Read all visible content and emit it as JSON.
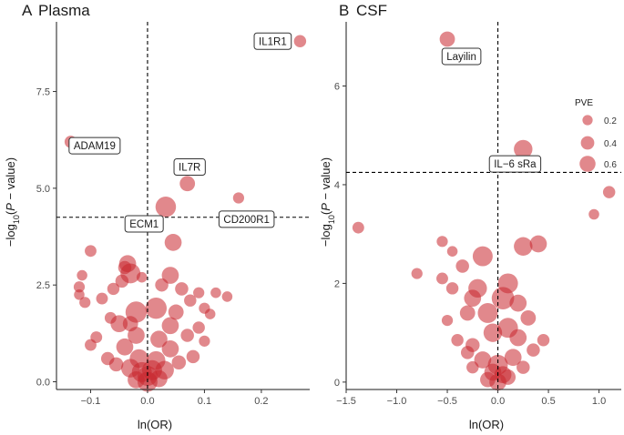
{
  "chart_data": [
    {
      "panel_letter": "A",
      "title": "Plasma",
      "type": "scatter",
      "xlabel": "ln(OR)",
      "ylabel_main": "−log",
      "ylabel_sub": "10",
      "ylabel_open": "(",
      "ylabel_italic": "P",
      "ylabel_close": " − value)",
      "xlim": [
        -0.16,
        0.285
      ],
      "ylim": [
        -0.2,
        9.3
      ],
      "xticks": [
        -0.1,
        0.0,
        0.1,
        0.2
      ],
      "xtick_labels": [
        "−0.1",
        "0.0",
        "0.1",
        "0.2"
      ],
      "yticks": [
        0,
        2.5,
        5,
        7.5
      ],
      "ytick_labels": [
        "0.0",
        "2.5",
        "5.0",
        "7.5"
      ],
      "vline_x": 0,
      "hline_y": 4.25,
      "highlighted": [
        {
          "label": "IL1R1",
          "x": 0.268,
          "y": 8.8,
          "pve": 0.08,
          "label_pos": [
            0.22,
            8.8
          ]
        },
        {
          "label": "ADAM19",
          "x": -0.135,
          "y": 6.2,
          "pve": 0.08,
          "label_pos": [
            -0.093,
            6.1
          ]
        },
        {
          "label": "IL7R",
          "x": 0.07,
          "y": 5.12,
          "pve": 0.15,
          "label_pos": [
            0.074,
            5.55
          ]
        },
        {
          "label": "CD200R1",
          "x": 0.16,
          "y": 4.75,
          "pve": 0.06,
          "label_pos": [
            0.174,
            4.2
          ]
        },
        {
          "label": "ECM1",
          "x": 0.032,
          "y": 4.52,
          "pve": 0.32,
          "label_pos": [
            -0.006,
            4.08
          ]
        }
      ],
      "points": [
        {
          "x": 0.045,
          "y": 3.6,
          "pve": 0.2
        },
        {
          "x": 0.04,
          "y": 2.75,
          "pve": 0.2
        },
        {
          "x": -0.035,
          "y": 3.05,
          "pve": 0.2
        },
        {
          "x": -0.03,
          "y": 2.8,
          "pve": 0.3
        },
        {
          "x": -0.04,
          "y": 2.95,
          "pve": 0.1
        },
        {
          "x": -0.045,
          "y": 2.6,
          "pve": 0.1
        },
        {
          "x": -0.1,
          "y": 3.38,
          "pve": 0.07
        },
        {
          "x": -0.12,
          "y": 2.45,
          "pve": 0.06
        },
        {
          "x": -0.115,
          "y": 2.75,
          "pve": 0.05
        },
        {
          "x": -0.12,
          "y": 2.25,
          "pve": 0.05
        },
        {
          "x": -0.11,
          "y": 2.05,
          "pve": 0.06
        },
        {
          "x": 0.025,
          "y": 2.5,
          "pve": 0.1
        },
        {
          "x": -0.01,
          "y": 2.7,
          "pve": 0.05
        },
        {
          "x": 0.015,
          "y": 1.9,
          "pve": 0.35
        },
        {
          "x": -0.02,
          "y": 1.8,
          "pve": 0.35
        },
        {
          "x": 0.06,
          "y": 2.4,
          "pve": 0.1
        },
        {
          "x": 0.075,
          "y": 2.1,
          "pve": 0.08
        },
        {
          "x": 0.09,
          "y": 2.3,
          "pve": 0.06
        },
        {
          "x": 0.1,
          "y": 1.9,
          "pve": 0.06
        },
        {
          "x": 0.12,
          "y": 2.3,
          "pve": 0.05
        },
        {
          "x": 0.14,
          "y": 2.2,
          "pve": 0.05
        },
        {
          "x": 0.11,
          "y": 1.75,
          "pve": 0.05
        },
        {
          "x": -0.08,
          "y": 2.15,
          "pve": 0.07
        },
        {
          "x": -0.065,
          "y": 1.65,
          "pve": 0.07
        },
        {
          "x": -0.06,
          "y": 2.4,
          "pve": 0.08
        },
        {
          "x": -0.05,
          "y": 1.5,
          "pve": 0.2
        },
        {
          "x": -0.03,
          "y": 1.5,
          "pve": 0.15
        },
        {
          "x": 0.04,
          "y": 1.45,
          "pve": 0.2
        },
        {
          "x": 0.05,
          "y": 1.8,
          "pve": 0.15
        },
        {
          "x": 0.07,
          "y": 1.2,
          "pve": 0.1
        },
        {
          "x": 0.09,
          "y": 1.4,
          "pve": 0.08
        },
        {
          "x": -0.09,
          "y": 1.15,
          "pve": 0.07
        },
        {
          "x": -0.1,
          "y": 0.95,
          "pve": 0.07
        },
        {
          "x": 0.1,
          "y": 1.05,
          "pve": 0.06
        },
        {
          "x": -0.07,
          "y": 0.6,
          "pve": 0.1
        },
        {
          "x": 0.08,
          "y": 0.65,
          "pve": 0.1
        },
        {
          "x": -0.02,
          "y": 1.2,
          "pve": 0.2
        },
        {
          "x": 0.02,
          "y": 1.1,
          "pve": 0.2
        },
        {
          "x": -0.04,
          "y": 0.9,
          "pve": 0.2
        },
        {
          "x": 0.04,
          "y": 0.85,
          "pve": 0.2
        },
        {
          "x": -0.015,
          "y": 0.6,
          "pve": 0.25
        },
        {
          "x": 0.015,
          "y": 0.55,
          "pve": 0.25
        },
        {
          "x": -0.03,
          "y": 0.35,
          "pve": 0.25
        },
        {
          "x": 0.03,
          "y": 0.3,
          "pve": 0.25
        },
        {
          "x": 0.0,
          "y": 0.15,
          "pve": 0.3
        },
        {
          "x": -0.01,
          "y": 0.25,
          "pve": 0.3
        },
        {
          "x": 0.008,
          "y": 0.3,
          "pve": 0.3
        },
        {
          "x": -0.055,
          "y": 0.45,
          "pve": 0.12
        },
        {
          "x": 0.055,
          "y": 0.5,
          "pve": 0.12
        },
        {
          "x": -0.02,
          "y": 0.05,
          "pve": 0.2
        },
        {
          "x": 0.02,
          "y": 0.08,
          "pve": 0.2
        },
        {
          "x": 0.0,
          "y": 0.0,
          "pve": 0.3
        }
      ]
    },
    {
      "panel_letter": "B",
      "title": "CSF",
      "type": "scatter",
      "xlabel": "ln(OR)",
      "ylabel_main": "−log",
      "ylabel_sub": "10",
      "ylabel_open": "(",
      "ylabel_italic": "P",
      "ylabel_close": " − value)",
      "xlim": [
        -1.5,
        1.22
      ],
      "ylim": [
        -0.15,
        7.3
      ],
      "xticks": [
        -1.5,
        -1.0,
        -0.5,
        0.0,
        0.5,
        1.0
      ],
      "xtick_labels": [
        "−1.5",
        "−1.0",
        "−0.5",
        "0.0",
        "0.5",
        "1.0"
      ],
      "yticks": [
        0,
        2,
        4,
        6
      ],
      "ytick_labels": [
        "0",
        "2",
        "4",
        "6"
      ],
      "vline_x": 0,
      "hline_y": 4.25,
      "highlighted": [
        {
          "label": "Layilin",
          "x": -0.5,
          "y": 6.95,
          "pve": 0.15,
          "label_pos": [
            -0.36,
            6.6
          ]
        },
        {
          "label": "IL−6 sRa",
          "x": 0.25,
          "y": 4.72,
          "pve": 0.25,
          "label_pos": [
            0.17,
            4.42
          ]
        }
      ],
      "points": [
        {
          "x": 1.1,
          "y": 3.85,
          "pve": 0.08
        },
        {
          "x": 0.95,
          "y": 3.4,
          "pve": 0.05
        },
        {
          "x": -1.38,
          "y": 3.13,
          "pve": 0.07
        },
        {
          "x": -0.55,
          "y": 2.85,
          "pve": 0.06
        },
        {
          "x": -0.45,
          "y": 2.65,
          "pve": 0.05
        },
        {
          "x": -0.15,
          "y": 2.55,
          "pve": 0.3
        },
        {
          "x": 0.25,
          "y": 2.75,
          "pve": 0.25
        },
        {
          "x": 0.4,
          "y": 2.8,
          "pve": 0.2
        },
        {
          "x": -0.8,
          "y": 2.2,
          "pve": 0.06
        },
        {
          "x": -0.55,
          "y": 2.1,
          "pve": 0.07
        },
        {
          "x": -0.45,
          "y": 1.9,
          "pve": 0.08
        },
        {
          "x": -0.35,
          "y": 2.35,
          "pve": 0.1
        },
        {
          "x": -0.2,
          "y": 1.9,
          "pve": 0.25
        },
        {
          "x": -0.25,
          "y": 1.7,
          "pve": 0.2
        },
        {
          "x": 0.1,
          "y": 2.0,
          "pve": 0.3
        },
        {
          "x": 0.05,
          "y": 1.7,
          "pve": 0.4
        },
        {
          "x": 0.2,
          "y": 1.6,
          "pve": 0.2
        },
        {
          "x": -0.1,
          "y": 1.4,
          "pve": 0.3
        },
        {
          "x": -0.3,
          "y": 1.4,
          "pve": 0.15
        },
        {
          "x": 0.3,
          "y": 1.3,
          "pve": 0.15
        },
        {
          "x": -0.5,
          "y": 1.25,
          "pve": 0.06
        },
        {
          "x": 0.1,
          "y": 1.1,
          "pve": 0.3
        },
        {
          "x": 0.2,
          "y": 0.9,
          "pve": 0.2
        },
        {
          "x": -0.05,
          "y": 1.0,
          "pve": 0.25
        },
        {
          "x": -0.4,
          "y": 0.85,
          "pve": 0.08
        },
        {
          "x": 0.35,
          "y": 0.65,
          "pve": 0.1
        },
        {
          "x": 0.45,
          "y": 0.85,
          "pve": 0.08
        },
        {
          "x": -0.25,
          "y": 0.75,
          "pve": 0.12
        },
        {
          "x": -0.3,
          "y": 0.6,
          "pve": 0.1
        },
        {
          "x": 0.15,
          "y": 0.5,
          "pve": 0.2
        },
        {
          "x": -0.15,
          "y": 0.45,
          "pve": 0.2
        },
        {
          "x": 0.0,
          "y": 0.35,
          "pve": 0.3
        },
        {
          "x": -0.05,
          "y": 0.2,
          "pve": 0.2
        },
        {
          "x": 0.05,
          "y": 0.15,
          "pve": 0.2
        },
        {
          "x": -0.1,
          "y": 0.05,
          "pve": 0.15
        },
        {
          "x": 0.1,
          "y": 0.1,
          "pve": 0.15
        },
        {
          "x": -0.25,
          "y": 0.3,
          "pve": 0.08
        },
        {
          "x": 0.25,
          "y": 0.3,
          "pve": 0.1
        },
        {
          "x": 0.0,
          "y": 0.0,
          "pve": 0.2
        }
      ],
      "legend": {
        "title": "PVE",
        "entries": [
          {
            "label": "0.2",
            "pve": 0.2
          },
          {
            "label": "0.4",
            "pve": 0.4
          },
          {
            "label": "0.6",
            "pve": 0.6
          }
        ]
      }
    }
  ]
}
